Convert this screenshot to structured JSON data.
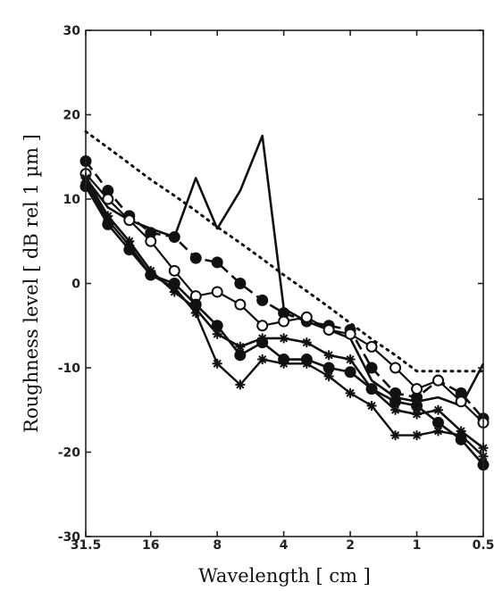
{
  "chart_data": {
    "type": "line",
    "xlabel": "Wavelength [ cm ]",
    "ylabel": "Roughness level [ dB rel 1  µm ]",
    "x_scale": "log",
    "x_reversed": true,
    "xlim": [
      31.5,
      0.5
    ],
    "ylim": [
      -30,
      30
    ],
    "xticks": [
      31.5,
      16,
      8,
      4,
      2,
      1,
      0.5
    ],
    "xtick_labels": [
      "31.5",
      "16",
      "8",
      "4",
      "2",
      "1",
      "0.5"
    ],
    "yticks": [
      -30,
      -20,
      -10,
      0,
      10,
      20,
      30
    ],
    "ytick_labels": [
      "-30",
      "-20",
      "-10",
      "0",
      "10",
      "20",
      "30"
    ],
    "grid": false,
    "legend": "none",
    "x": [
      31.5,
      25,
      20,
      16,
      12.5,
      10,
      8,
      6.3,
      5,
      4,
      3.15,
      2.5,
      2,
      1.6,
      1.25,
      1,
      0.8,
      0.63,
      0.5
    ],
    "series": [
      {
        "style": "dotted",
        "marker": "none",
        "line_width": 2.2,
        "color": "#111111",
        "values": [
          18,
          16.1,
          14.2,
          12.3,
          10.4,
          8.6,
          6.7,
          4.8,
          2.9,
          1,
          -0.9,
          -2.8,
          -4.7,
          -6.6,
          -8.5,
          -10.4,
          -10.4,
          -10.4,
          -10.4
        ]
      },
      {
        "style": "solid",
        "marker": "none",
        "line_width": 2.6,
        "color": "#111111",
        "values": [
          12.5,
          9,
          7.5,
          6.5,
          5.5,
          12.5,
          6.5,
          11,
          17.5,
          -3,
          -4.5,
          -5.5,
          -6.5,
          -11.5,
          -13.5,
          -14,
          -13.5,
          -14.5,
          -9.5
        ]
      },
      {
        "style": "dashed",
        "marker": "filled-circle",
        "line_width": 2.6,
        "color": "#111111",
        "values": [
          14.5,
          11,
          8,
          6,
          5.5,
          3,
          2.5,
          0,
          -2,
          -3.5,
          -4.5,
          -5,
          -5.5,
          -10,
          -13,
          -13.5,
          -11.5,
          -13,
          -16
        ]
      },
      {
        "style": "solid",
        "marker": "open-circle",
        "line_width": 2.2,
        "color": "#111111",
        "values": [
          13,
          10,
          7.5,
          5,
          1.5,
          -1.5,
          -1,
          -2.5,
          -5,
          -4.5,
          -4,
          -5.5,
          -6,
          -7.5,
          -10,
          -12.5,
          -11.5,
          -14,
          -16.5
        ]
      },
      {
        "style": "solid",
        "marker": "star",
        "line_width": 2.6,
        "color": "#111111",
        "values": [
          12.5,
          8,
          5,
          1.5,
          -1,
          -3,
          -6,
          -7.5,
          -6.5,
          -6.5,
          -7,
          -8.5,
          -9,
          -12.5,
          -15,
          -15.5,
          -15,
          -17.5,
          -19.5
        ]
      },
      {
        "style": "solid",
        "marker": "filled-circle",
        "line_width": 2.6,
        "color": "#111111",
        "values": [
          11.5,
          7,
          4,
          1,
          0,
          -2.5,
          -5,
          -8.5,
          -7,
          -9,
          -9,
          -10,
          -10.5,
          -12.5,
          -14,
          -14.5,
          -16.5,
          -18.5,
          -21.5
        ]
      },
      {
        "style": "solid",
        "marker": "star",
        "line_width": 2.4,
        "color": "#111111",
        "values": [
          12,
          7.5,
          4.5,
          1,
          -0.5,
          -3.5,
          -9.5,
          -12,
          -9,
          -9.5,
          -9.5,
          -11,
          -13,
          -14.5,
          -18,
          -18,
          -17.5,
          -18,
          -20.5
        ]
      }
    ]
  }
}
